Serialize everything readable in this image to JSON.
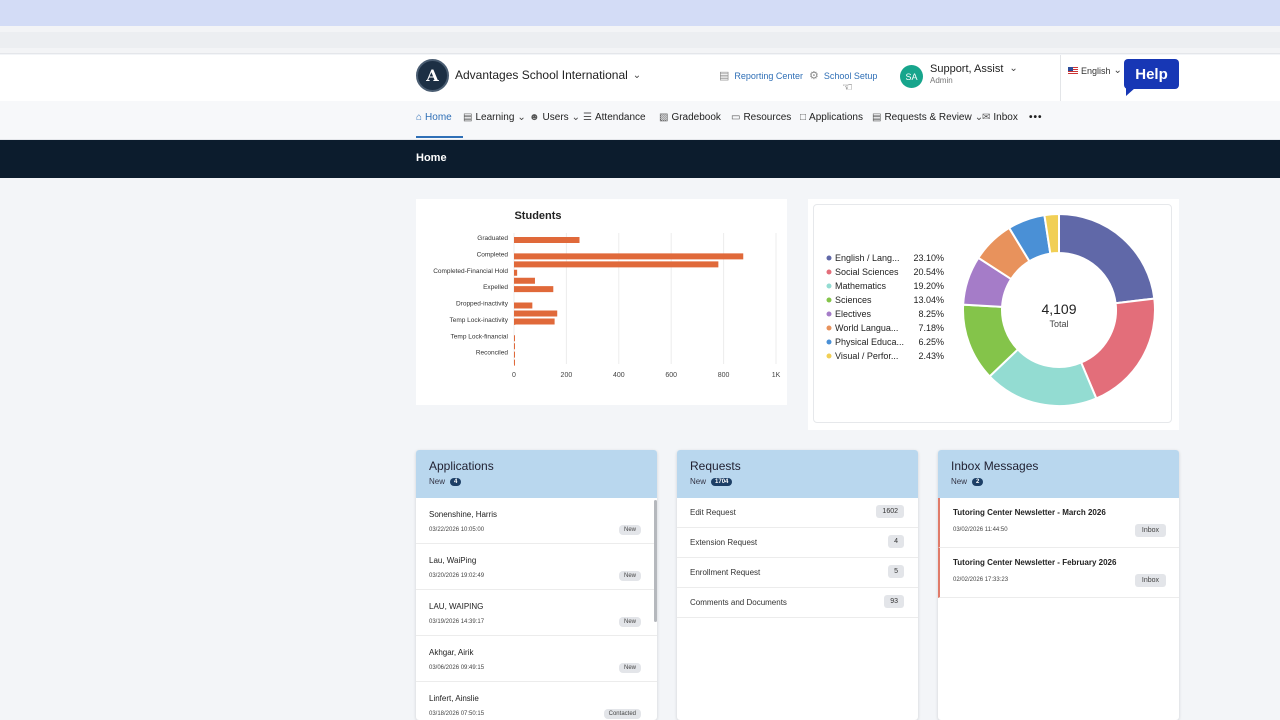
{
  "header": {
    "school_name": "Advantages School International",
    "logo_letter": "A",
    "reporting_center": "Reporting Center",
    "school_setup": "School Setup",
    "user_initials": "SA",
    "user_name": "Support, Assist",
    "user_role": "Admin",
    "language": "English",
    "help_label": "Help"
  },
  "nav": {
    "items": [
      {
        "label": "Home",
        "icon": "home-icon",
        "active": true
      },
      {
        "label": "Learning",
        "icon": "book-icon",
        "dropdown": true
      },
      {
        "label": "Users",
        "icon": "user-icon",
        "dropdown": true
      },
      {
        "label": "Attendance",
        "icon": "list-icon"
      },
      {
        "label": "Gradebook",
        "icon": "gradebook-icon"
      },
      {
        "label": "Resources",
        "icon": "monitor-icon"
      },
      {
        "label": "Applications",
        "icon": "chat-icon"
      },
      {
        "label": "Requests & Review",
        "icon": "clipboard-icon",
        "dropdown": true
      },
      {
        "label": "Inbox",
        "icon": "mail-icon"
      }
    ],
    "more": "•••"
  },
  "banner": {
    "title": "Home"
  },
  "chart_data": [
    {
      "type": "bar",
      "orientation": "horizontal",
      "title": "Students",
      "categories": [
        "Graduated",
        "Completed",
        "Completed-Financial Hold",
        "Expelled",
        "Dropped-inactivity",
        "Temp Lock-inactivity",
        "Temp Lock-financial",
        "Reconciled"
      ],
      "series": [
        {
          "values": [
            250,
            875,
            12,
            150,
            70,
            5,
            2,
            1
          ]
        },
        {
          "values": [
            0,
            780,
            80,
            0,
            165,
            0,
            3,
            2
          ]
        },
        {
          "values": [
            0,
            0,
            0,
            0,
            155,
            0,
            0,
            0
          ]
        }
      ],
      "ticks": [
        "0",
        "200",
        "400",
        "600",
        "800",
        "1K"
      ],
      "xlim": [
        0,
        1000
      ],
      "bar_color": "#e0693a",
      "grid": true
    },
    {
      "type": "pie",
      "style": "donut",
      "center_value": "4,109",
      "center_label": "Total",
      "legend_position": "left",
      "slices": [
        {
          "label": "English / Lang...",
          "percent": "23.10%",
          "value": 23.1,
          "color": "#6068a8"
        },
        {
          "label": "Social Sciences",
          "percent": "20.54%",
          "value": 20.54,
          "color": "#e36e7a"
        },
        {
          "label": "Mathematics",
          "percent": "19.20%",
          "value": 19.2,
          "color": "#93dcd2"
        },
        {
          "label": "Sciences",
          "percent": "13.04%",
          "value": 13.04,
          "color": "#84c44a"
        },
        {
          "label": "Electives",
          "percent": "8.25%",
          "value": 8.25,
          "color": "#a57cc8"
        },
        {
          "label": "World Langua...",
          "percent": "7.18%",
          "value": 7.18,
          "color": "#e8925c"
        },
        {
          "label": "Physical Educa...",
          "percent": "6.25%",
          "value": 6.25,
          "color": "#4a90d6"
        },
        {
          "label": "Visual / Perfor...",
          "percent": "2.43%",
          "value": 2.43,
          "color": "#f1cf55"
        }
      ]
    }
  ],
  "applications": {
    "title": "Applications",
    "new_label": "New",
    "new_count": "4",
    "rows": [
      {
        "name": "Sonenshine, Harris",
        "date": "03/22/2026 10:05:00",
        "status": "New"
      },
      {
        "name": "Lau, WaiPing",
        "date": "03/20/2026 19:02:49",
        "status": "New"
      },
      {
        "name": "LAU, WAIPING",
        "date": "03/19/2026 14:39:17",
        "status": "New"
      },
      {
        "name": "Akhgar, Airik",
        "date": "03/06/2026 09:49:15",
        "status": "New"
      },
      {
        "name": "Linfert, Ainslie",
        "date": "03/18/2026 07:50:15",
        "status": "Contacted"
      }
    ]
  },
  "requests": {
    "title": "Requests",
    "new_label": "New",
    "new_count": "1704",
    "rows": [
      {
        "label": "Edit Request",
        "count": "1602"
      },
      {
        "label": "Extension Request",
        "count": "4"
      },
      {
        "label": "Enrollment Request",
        "count": "5"
      },
      {
        "label": "Comments and Documents",
        "count": "93"
      }
    ]
  },
  "inbox": {
    "title": "Inbox Messages",
    "new_label": "New",
    "new_count": "2",
    "rows": [
      {
        "title": "Tutoring Center Newsletter - March 2026",
        "date": "03/02/2026 11:44:50",
        "tag": "Inbox"
      },
      {
        "title": "Tutoring Center Newsletter - February 2026",
        "date": "02/02/2026 17:33:23",
        "tag": "Inbox"
      }
    ]
  }
}
